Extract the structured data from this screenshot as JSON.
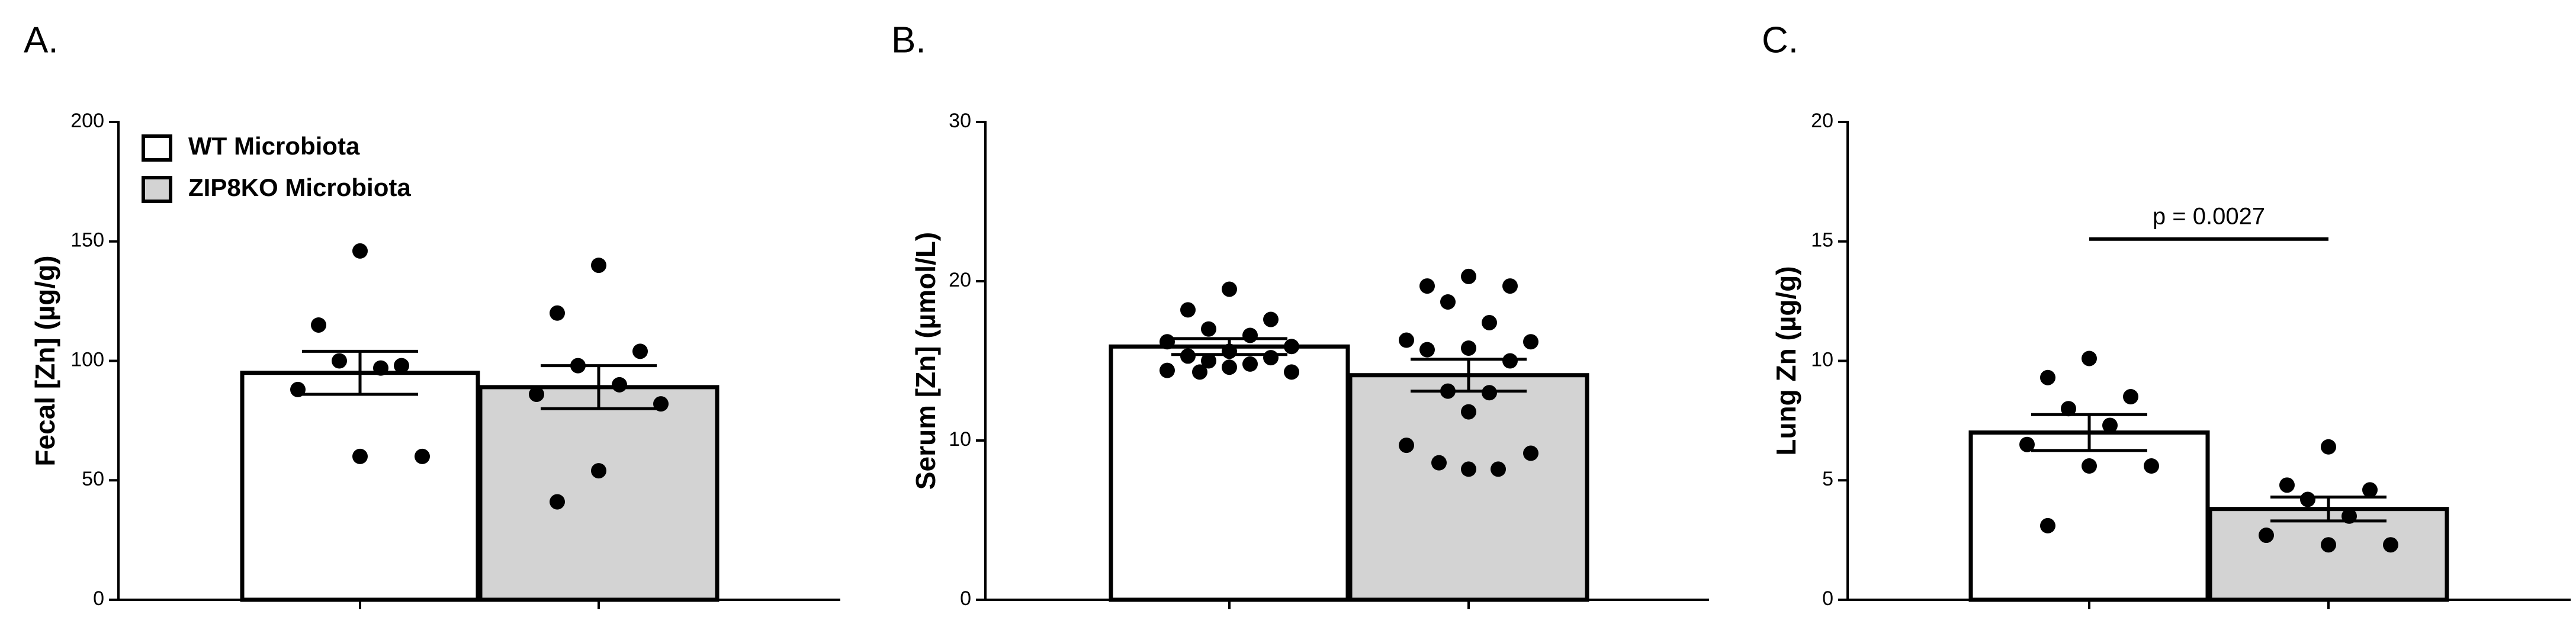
{
  "chart_data": [
    {
      "type": "bar",
      "panel_label": "A.",
      "ylabel": "Fecal [Zn] (µg/g)",
      "ylim": [
        0,
        200
      ],
      "yticks": [
        0,
        50,
        100,
        150,
        200
      ],
      "legend": "upper left",
      "series": [
        {
          "name": "WT Microbiota",
          "color": "#ffffff",
          "value": 95,
          "error": 9,
          "points": [
            146,
            115,
            98,
            100,
            97,
            88,
            60,
            60
          ]
        },
        {
          "name": "ZIP8KO Microbiota",
          "color": "#d3d3d3",
          "value": 89,
          "error": 9,
          "points": [
            140,
            120,
            104,
            98,
            90,
            86,
            82,
            54,
            41
          ]
        }
      ]
    },
    {
      "type": "bar",
      "panel_label": "B.",
      "ylabel": "Serum [Zn] (µmol/L)",
      "ylim": [
        0,
        30
      ],
      "yticks": [
        0,
        10,
        20,
        30
      ],
      "series": [
        {
          "color": "#ffffff",
          "value": 15.9,
          "error": 0.5,
          "points": [
            19.5,
            18.2,
            17.6,
            17.0,
            16.6,
            16.2,
            15.9,
            15.6,
            15.3,
            15.2,
            15.0,
            14.8,
            14.6,
            14.4,
            14.3,
            14.3
          ]
        },
        {
          "color": "#d3d3d3",
          "value": 14.1,
          "error": 1.0,
          "points": [
            20.3,
            19.7,
            19.7,
            18.7,
            17.4,
            16.3,
            16.2,
            15.8,
            15.7,
            15.0,
            13.1,
            13.0,
            11.8,
            9.7,
            9.2,
            8.6,
            8.2,
            8.2
          ]
        }
      ]
    },
    {
      "type": "bar",
      "panel_label": "C.",
      "ylabel": "Lung Zn (µg/g)",
      "ylim": [
        0,
        20
      ],
      "yticks": [
        0,
        5,
        10,
        15,
        20
      ],
      "annotation": "p = 0.0027",
      "series": [
        {
          "color": "#ffffff",
          "value": 7.0,
          "error": 0.75,
          "points": [
            10.1,
            9.3,
            8.5,
            8.0,
            7.3,
            6.5,
            5.6,
            5.6,
            3.1
          ]
        },
        {
          "color": "#d3d3d3",
          "value": 3.8,
          "error": 0.5,
          "points": [
            6.4,
            4.8,
            4.6,
            4.2,
            3.5,
            2.7,
            2.3,
            2.3
          ]
        }
      ]
    }
  ]
}
